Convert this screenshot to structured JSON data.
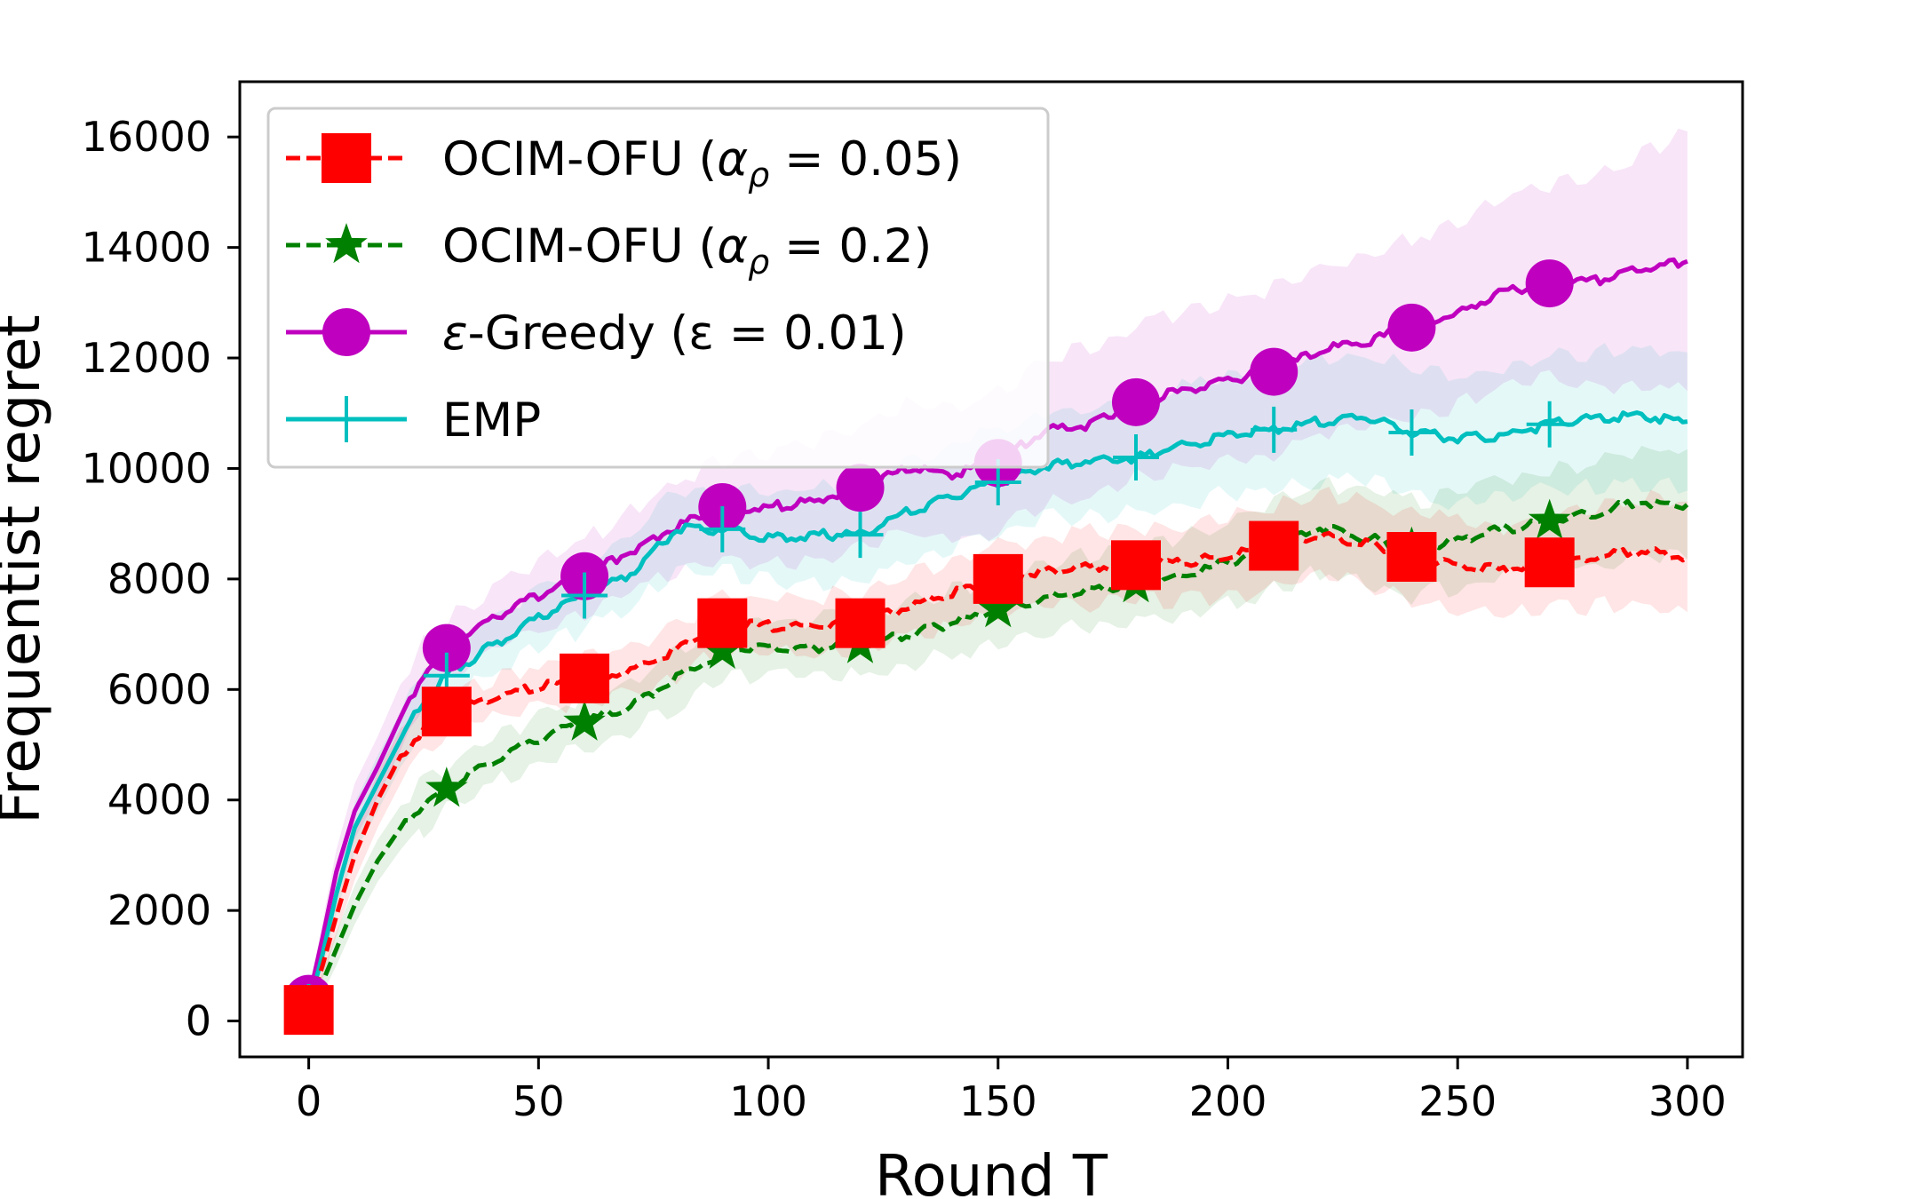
{
  "chart_data": {
    "type": "line",
    "title": "",
    "xlabel": "Round T",
    "ylabel": "Frequentist regret",
    "xlim": [
      -15,
      312
    ],
    "ylim": [
      -650,
      17000
    ],
    "x_ticks": [
      0,
      50,
      100,
      150,
      200,
      250,
      300
    ],
    "x_tick_labels": [
      "0",
      "50",
      "100",
      "150",
      "200",
      "250",
      "300"
    ],
    "y_ticks": [
      0,
      2000,
      4000,
      6000,
      8000,
      10000,
      12000,
      14000,
      16000
    ],
    "y_tick_labels": [
      "0",
      "2000",
      "4000",
      "6000",
      "8000",
      "10000",
      "12000",
      "14000",
      "16000"
    ],
    "grid": false,
    "legend_position": "top-left",
    "legend": {
      "entries": [
        {
          "prefix": "OCIM-OFU (",
          "math_var": "α",
          "math_sub": "ρ",
          "rest": " = 0.05)"
        },
        {
          "prefix": "OCIM-OFU (",
          "math_var": "α",
          "math_sub": "ρ",
          "rest": " = 0.2)"
        },
        {
          "prefix": "",
          "math_var": "ε",
          "math_sub": "",
          "rest": "-Greedy (ε = 0.01)"
        },
        {
          "prefix": "EMP",
          "math_var": "",
          "math_sub": "",
          "rest": ""
        }
      ]
    },
    "series": [
      {
        "name": "OCIM-OFU (α_ρ = 0.05)",
        "color": "#ff0000",
        "linestyle": "dashed",
        "marker": "square",
        "x": [
          0,
          3,
          6,
          10,
          15,
          20,
          25,
          30,
          40,
          50,
          60,
          70,
          80,
          90,
          100,
          110,
          120,
          130,
          140,
          150,
          160,
          170,
          180,
          190,
          200,
          210,
          220,
          230,
          240,
          250,
          260,
          270,
          280,
          290,
          300
        ],
        "values": [
          200,
          1000,
          1900,
          3000,
          4000,
          4800,
          5300,
          5600,
          5850,
          6050,
          6200,
          6350,
          6700,
          7200,
          7150,
          7150,
          7200,
          7500,
          7750,
          8000,
          8150,
          8200,
          8250,
          8300,
          8400,
          8600,
          8800,
          8650,
          8400,
          8250,
          8150,
          8300,
          8400,
          8500,
          8400
        ],
        "band_half_width": [
          80,
          250,
          350,
          450,
          500,
          500,
          450,
          350,
          350,
          400,
          400,
          420,
          450,
          500,
          500,
          520,
          550,
          550,
          600,
          600,
          600,
          650,
          650,
          700,
          700,
          750,
          750,
          750,
          800,
          800,
          800,
          850,
          900,
          950,
          1000
        ],
        "marker_x": [
          0,
          30,
          60,
          90,
          120,
          150,
          180,
          210,
          240,
          270
        ],
        "marker_values": [
          200,
          5600,
          6200,
          7200,
          7200,
          8000,
          8250,
          8600,
          8400,
          8300
        ]
      },
      {
        "name": "OCIM-OFU (α_ρ = 0.2)",
        "color": "#008000",
        "linestyle": "dashed",
        "marker": "star",
        "x": [
          0,
          3,
          6,
          10,
          15,
          20,
          25,
          30,
          40,
          50,
          60,
          70,
          80,
          90,
          100,
          110,
          120,
          130,
          140,
          150,
          160,
          170,
          180,
          190,
          200,
          210,
          220,
          230,
          240,
          250,
          260,
          270,
          280,
          290,
          300
        ],
        "values": [
          150,
          700,
          1300,
          2100,
          2900,
          3500,
          3900,
          4200,
          4700,
          5100,
          5400,
          5700,
          6200,
          6700,
          6750,
          6750,
          6800,
          7000,
          7200,
          7450,
          7650,
          7800,
          7900,
          8050,
          8300,
          8600,
          8950,
          8750,
          8550,
          8700,
          8900,
          9050,
          9200,
          9400,
          9350
        ],
        "band_half_width": [
          80,
          200,
          300,
          350,
          380,
          400,
          420,
          400,
          400,
          420,
          450,
          470,
          500,
          500,
          520,
          520,
          550,
          550,
          580,
          600,
          620,
          650,
          700,
          700,
          750,
          800,
          800,
          850,
          850,
          850,
          900,
          900,
          950,
          950,
          1000
        ],
        "marker_x": [
          0,
          30,
          60,
          90,
          120,
          150,
          180,
          210,
          240,
          270
        ],
        "marker_values": [
          150,
          4200,
          5400,
          6700,
          6800,
          7450,
          7900,
          8600,
          8550,
          9050
        ]
      },
      {
        "name": "ε-Greedy (ε = 0.01)",
        "color": "#bf00bf",
        "linestyle": "solid",
        "marker": "circle",
        "x": [
          0,
          3,
          6,
          10,
          15,
          20,
          25,
          30,
          40,
          50,
          60,
          70,
          80,
          90,
          100,
          110,
          120,
          130,
          140,
          150,
          160,
          170,
          180,
          190,
          200,
          210,
          220,
          230,
          240,
          250,
          260,
          270,
          280,
          290,
          300
        ],
        "values": [
          400,
          1500,
          2700,
          3800,
          4600,
          5500,
          6300,
          6750,
          7300,
          7700,
          8050,
          8500,
          8950,
          9300,
          9300,
          9400,
          9650,
          10000,
          9900,
          10100,
          10700,
          10800,
          11200,
          11400,
          11600,
          11750,
          12150,
          12300,
          12550,
          12800,
          13200,
          13350,
          13400,
          13600,
          13750
        ],
        "band_half_width": [
          100,
          300,
          400,
          500,
          550,
          600,
          550,
          500,
          550,
          600,
          650,
          700,
          800,
          900,
          1000,
          1050,
          1100,
          1150,
          1200,
          1250,
          1300,
          1350,
          1350,
          1400,
          1450,
          1500,
          1500,
          1550,
          1600,
          1650,
          1700,
          1750,
          1900,
          2100,
          2350
        ],
        "marker_x": [
          0,
          30,
          60,
          90,
          120,
          150,
          180,
          210,
          240,
          270
        ],
        "marker_values": [
          400,
          6750,
          8050,
          9300,
          9650,
          10100,
          11200,
          11750,
          12550,
          13350
        ]
      },
      {
        "name": "EMP",
        "color": "#00bfbf",
        "linestyle": "solid",
        "marker": "plus",
        "x": [
          0,
          3,
          6,
          10,
          15,
          20,
          25,
          30,
          40,
          50,
          60,
          70,
          80,
          90,
          100,
          110,
          120,
          130,
          140,
          150,
          160,
          170,
          180,
          190,
          200,
          210,
          220,
          230,
          240,
          250,
          260,
          270,
          280,
          290,
          300
        ],
        "values": [
          250,
          1200,
          2300,
          3500,
          4300,
          5100,
          5800,
          6250,
          6800,
          7300,
          7700,
          8100,
          8900,
          8900,
          8750,
          8800,
          8800,
          9200,
          9500,
          9750,
          10050,
          10150,
          10200,
          10400,
          10600,
          10700,
          10850,
          10950,
          10650,
          10550,
          10600,
          10800,
          10900,
          10950,
          10850
        ],
        "band_half_width": [
          80,
          250,
          350,
          450,
          500,
          500,
          500,
          500,
          500,
          550,
          600,
          650,
          700,
          750,
          800,
          850,
          850,
          900,
          900,
          950,
          950,
          1000,
          1000,
          1050,
          1050,
          1100,
          1100,
          1100,
          1150,
          1150,
          1150,
          1200,
          1200,
          1200,
          1250
        ],
        "marker_x": [
          0,
          30,
          60,
          90,
          120,
          150,
          180,
          210,
          240,
          270
        ],
        "marker_values": [
          250,
          6250,
          7700,
          8900,
          8800,
          9750,
          10200,
          10700,
          10650,
          10800
        ]
      }
    ]
  }
}
